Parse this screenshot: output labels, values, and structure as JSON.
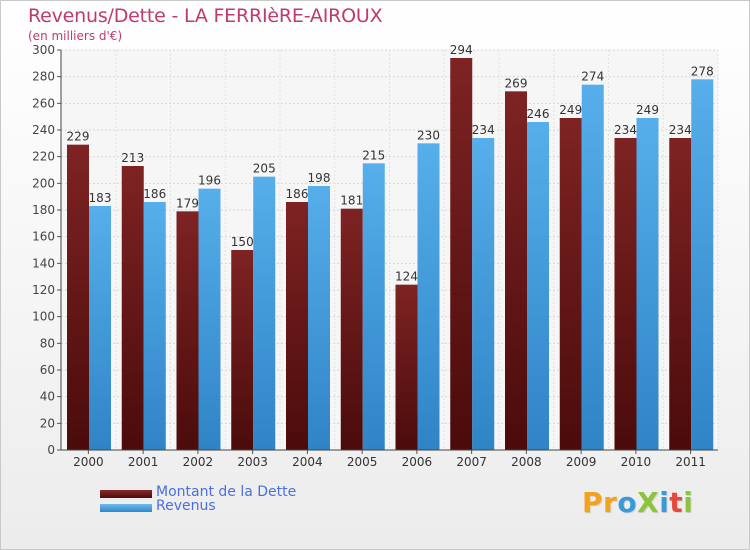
{
  "title": "Revenus/Dette - LA FERRIèRE-AIROUX",
  "subtitle": "(en milliers d'€)",
  "logo": {
    "text": "ProXiti",
    "letters": [
      {
        "ch": "P",
        "color": "#f2a21b"
      },
      {
        "ch": "r",
        "color": "#f2a21b"
      },
      {
        "ch": "o",
        "color": "#3a9ad9"
      },
      {
        "ch": "X",
        "color": "#8cc43c"
      },
      {
        "ch": "i",
        "color": "#3a9ad9"
      },
      {
        "ch": "t",
        "color": "#e64a3b"
      },
      {
        "ch": "i",
        "color": "#8cc43c"
      }
    ]
  },
  "chart_data": {
    "type": "bar",
    "categories": [
      "2000",
      "2001",
      "2002",
      "2003",
      "2004",
      "2005",
      "2006",
      "2007",
      "2008",
      "2009",
      "2010",
      "2011"
    ],
    "series": [
      {
        "name": "Montant de la Dette",
        "color": "#6b1a1a",
        "values": [
          229,
          213,
          179,
          150,
          186,
          181,
          124,
          294,
          269,
          249,
          234,
          234
        ]
      },
      {
        "name": "Revenus",
        "color": "#4aa3e3",
        "values": [
          183,
          186,
          196,
          205,
          198,
          215,
          230,
          234,
          246,
          274,
          249,
          278
        ]
      }
    ],
    "ylim": [
      0,
      300
    ],
    "ytick_step": 20,
    "grid": true,
    "legend_position": "bottom-left"
  }
}
